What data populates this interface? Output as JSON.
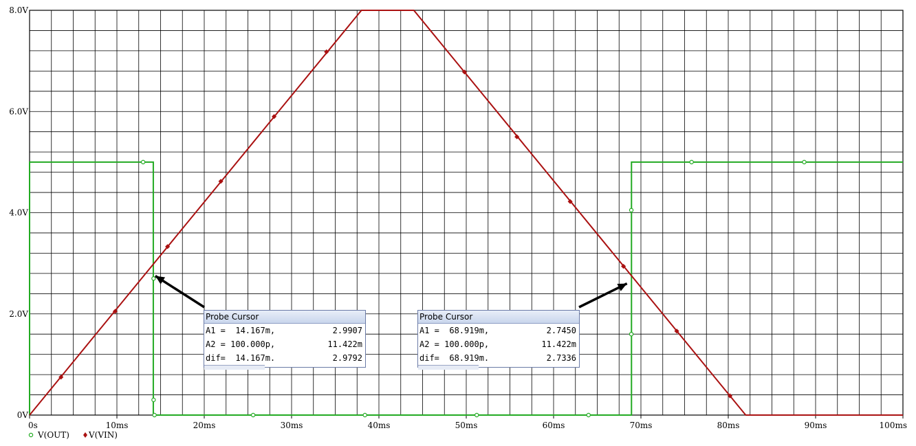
{
  "chart_data": {
    "type": "line",
    "xlim": [
      0,
      100
    ],
    "ylim": [
      0,
      8
    ],
    "x_ticks": [
      "0s",
      "10ms",
      "20ms",
      "30ms",
      "40ms",
      "50ms",
      "60ms",
      "70ms",
      "80ms",
      "90ms",
      "100ms"
    ],
    "y_ticks": [
      "0V",
      "2.0V",
      "4.0V",
      "6.0V",
      "8.0V"
    ],
    "grid": true,
    "legend_position": "bottom-left",
    "series": [
      {
        "name": "V(OUT)",
        "color": "#22aa22",
        "marker": "circle-open",
        "x": [
          0,
          0,
          14.167,
          14.167,
          68.919,
          68.919,
          100
        ],
        "y": [
          0,
          5,
          5,
          0,
          0,
          5,
          5
        ],
        "markers_x": [
          13,
          14.2,
          14.2,
          14.3,
          25.6,
          38.4,
          51.2,
          64,
          68.9,
          68.9,
          75.8,
          88.7
        ],
        "markers_y": [
          5,
          2.7,
          0.3,
          0,
          0,
          0,
          0,
          0,
          1.6,
          4.05,
          5,
          5
        ]
      },
      {
        "name": "V(VIN)",
        "color": "#aa1111",
        "marker": "diamond",
        "x": [
          0,
          38,
          44,
          82,
          100
        ],
        "y": [
          0,
          8,
          8,
          0,
          0
        ],
        "markers_x": [
          3.6,
          9.8,
          15.8,
          21.9,
          28,
          34,
          49.8,
          55.8,
          61.9,
          68,
          74.1,
          80.2
        ],
        "markers_y": [
          0.75,
          2.05,
          3.33,
          4.62,
          5.9,
          7.18,
          6.78,
          5.5,
          4.22,
          2.94,
          1.66,
          0.38
        ]
      }
    ],
    "annotations": [
      {
        "title": "Probe Cursor",
        "rows": [
          {
            "label": "A1 =  14.167m,",
            "value": "2.9907"
          },
          {
            "label": "A2 = 100.000p,",
            "value": "11.422m"
          },
          {
            "label": "dif=  14.167m.",
            "value": "2.9792"
          }
        ]
      },
      {
        "title": "Probe Cursor",
        "rows": [
          {
            "label": "A1 =  68.919m,",
            "value": "2.7450"
          },
          {
            "label": "A2 = 100.000p,",
            "value": "11.422m"
          },
          {
            "label": "dif=  68.919m.",
            "value": "2.7336"
          }
        ]
      }
    ]
  }
}
